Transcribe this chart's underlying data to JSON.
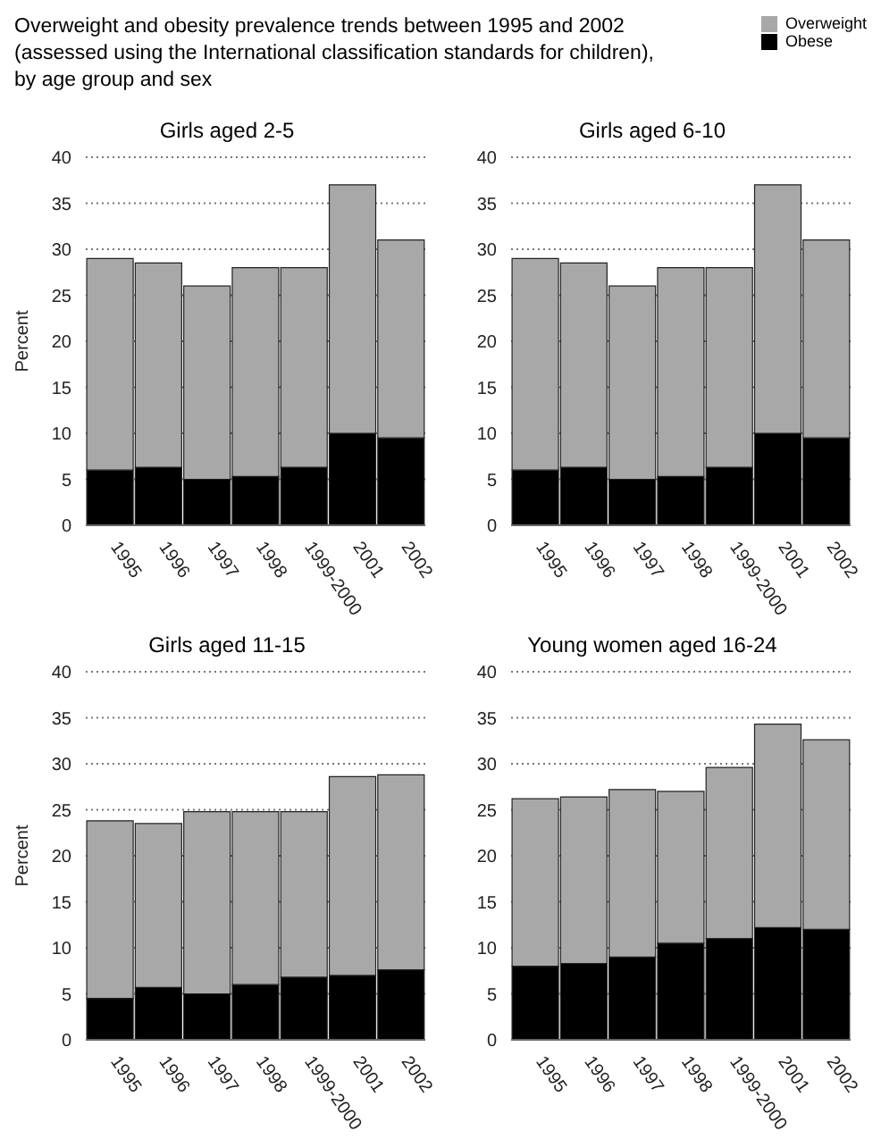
{
  "chart_data": [
    {
      "type": "bar",
      "title": "Girls aged 2-5",
      "annotations": [
        "Overweight and obesity prevalence trends between 1995 and 2002 (assessed using the International classification standards for children), by age group and sex"
      ],
      "ylabel": "Percent",
      "categories": [
        "1995",
        "1996",
        "1997",
        "1998",
        "1999-2000",
        "2001",
        "2002"
      ],
      "stacked": true,
      "legend": "top right",
      "grid": "y",
      "ylim": [
        0,
        40
      ],
      "yticks": [
        0,
        5,
        10,
        15,
        20,
        25,
        30,
        35,
        40
      ],
      "series": [
        {
          "name": "Obese",
          "color": "#000000",
          "values": [
            6,
            6.3,
            5,
            5.3,
            6.3,
            10,
            9.5
          ]
        },
        {
          "name": "Overweight",
          "color": "#a8a8a8",
          "values": [
            23,
            22.2,
            21,
            22.7,
            21.7,
            27,
            21.5
          ]
        }
      ]
    },
    {
      "type": "bar",
      "title": "Girls aged 6-10",
      "categories": [
        "1995",
        "1996",
        "1997",
        "1998",
        "1999-2000",
        "2001",
        "2002"
      ],
      "stacked": true,
      "grid": "y",
      "ylim": [
        0,
        40
      ],
      "yticks": [
        0,
        5,
        10,
        15,
        20,
        25,
        30,
        35,
        40
      ],
      "series": [
        {
          "color": "#000000",
          "values": [
            6,
            6.3,
            5,
            5.3,
            6.3,
            10,
            9.5
          ]
        },
        {
          "color": "#a8a8a8",
          "values": [
            23,
            22.2,
            21,
            22.7,
            21.7,
            27,
            21.5
          ]
        }
      ]
    },
    {
      "type": "bar",
      "title": "Girls aged 11-15",
      "ylabel": "Percent",
      "categories": [
        "1995",
        "1996",
        "1997",
        "1998",
        "1999-2000",
        "2001",
        "2002"
      ],
      "stacked": true,
      "grid": "y",
      "ylim": [
        0,
        40
      ],
      "yticks": [
        0,
        5,
        10,
        15,
        20,
        25,
        30,
        35,
        40
      ],
      "series": [
        {
          "color": "#000000",
          "values": [
            4.5,
            5.7,
            5,
            6,
            6.8,
            7,
            7.6
          ]
        },
        {
          "color": "#a8a8a8",
          "values": [
            19.3,
            17.8,
            19.8,
            18.8,
            18,
            21.6,
            21.2
          ]
        }
      ]
    },
    {
      "type": "bar",
      "title": "Young women aged 16-24",
      "categories": [
        "1995",
        "1996",
        "1997",
        "1998",
        "1999-2000",
        "2001",
        "2002"
      ],
      "stacked": true,
      "grid": "y",
      "ylim": [
        0,
        40
      ],
      "yticks": [
        0,
        5,
        10,
        15,
        20,
        25,
        30,
        35,
        40
      ],
      "series": [
        {
          "color": "#000000",
          "values": [
            8,
            8.3,
            9,
            10.5,
            11,
            12.2,
            12
          ]
        },
        {
          "color": "#a8a8a8",
          "values": [
            18.2,
            18.1,
            18.2,
            16.5,
            18.6,
            22.1,
            20.6
          ]
        }
      ]
    }
  ]
}
